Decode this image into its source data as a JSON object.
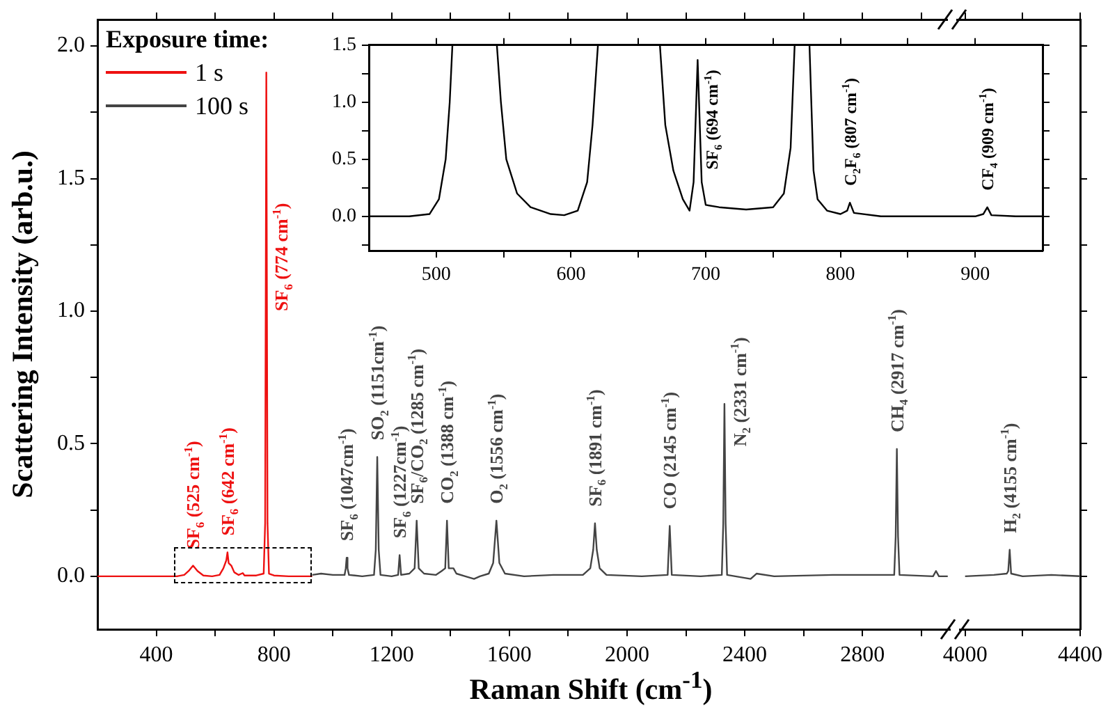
{
  "chart_data": [
    {
      "type": "line",
      "xlabel": "Raman Shift (cm$^{-1}$)",
      "ylabel": "Scattering Intensity (arb.u.)",
      "legend_title": "Exposure time:",
      "legend": "top left",
      "xlim": [
        200,
        3100
      ],
      "xticks": [
        400,
        {
          "value": 600,
          "label": null
        },
        800,
        {
          "value": 1000,
          "label": null
        },
        1200,
        {
          "value": 1400,
          "label": null
        },
        1600,
        {
          "value": 1800,
          "label": null
        },
        2000,
        {
          "value": 2200,
          "label": null
        },
        2400,
        {
          "value": 2600,
          "label": null
        },
        2800,
        {
          "value": 3000,
          "label": null
        }
      ],
      "ylim": [
        -0.2,
        2.1
      ],
      "yticks": [
        {
          "value": 0,
          "label": "0.0"
        },
        {
          "value": 0.25,
          "label": null
        },
        {
          "value": 0.5,
          "label": "0.5"
        },
        {
          "value": 0.75,
          "label": null
        },
        {
          "value": 1,
          "label": "1.0"
        },
        {
          "value": 1.25,
          "label": null
        },
        {
          "value": 1.5,
          "label": "1.5"
        },
        {
          "value": 1.75,
          "label": null
        },
        {
          "value": 2,
          "label": "2.0"
        }
      ],
      "series": [
        {
          "name": "1 s",
          "color": "#ee1111",
          "x": [
            200,
            300,
            400,
            470,
            495,
            510,
            525,
            540,
            560,
            590,
            615,
            628,
            638,
            642,
            646,
            655,
            665,
            680,
            694,
            700,
            740,
            765,
            770,
            774,
            778,
            783,
            800,
            850,
            930
          ],
          "values": [
            0,
            0,
            0,
            0,
            0.005,
            0.02,
            0.04,
            0.02,
            0.003,
            0,
            0.005,
            0.03,
            0.06,
            0.09,
            0.05,
            0.04,
            0.015,
            0.005,
            0.012,
            0.003,
            0.003,
            0.01,
            0.2,
            1.9,
            0.2,
            0.01,
            0.003,
            0,
            0
          ]
        },
        {
          "name": "100 s",
          "color": "#444444",
          "x": [
            930,
            960,
            1000,
            1040,
            1044,
            1047,
            1050,
            1055,
            1100,
            1140,
            1146,
            1151,
            1156,
            1162,
            1200,
            1222,
            1227,
            1232,
            1260,
            1278,
            1285,
            1292,
            1310,
            1350,
            1370,
            1382,
            1388,
            1394,
            1410,
            1420,
            1450,
            1480,
            1500,
            1530,
            1545,
            1556,
            1566,
            1585,
            1650,
            1750,
            1850,
            1875,
            1885,
            1891,
            1897,
            1907,
            1930,
            2050,
            2138,
            2145,
            2152,
            2250,
            2322,
            2327,
            2331,
            2335,
            2340,
            2420,
            2440,
            2500,
            2700,
            2908,
            2913,
            2917,
            2921,
            2926,
            3040,
            3050,
            3060,
            3090
          ],
          "values": [
            0.005,
            0.01,
            0.005,
            0.005,
            0.03,
            0.07,
            0.03,
            0.005,
            0,
            0.005,
            0.1,
            0.45,
            0.1,
            0.005,
            0,
            0.005,
            0.08,
            0.005,
            0.01,
            0.03,
            0.21,
            0.03,
            0.01,
            0.005,
            0.02,
            0.03,
            0.21,
            0.03,
            0.03,
            0.01,
            0,
            -0.01,
            0,
            0.01,
            0.05,
            0.21,
            0.05,
            0.01,
            0,
            0.005,
            0.005,
            0.03,
            0.1,
            0.2,
            0.1,
            0.03,
            0.005,
            0,
            0.005,
            0.19,
            0.005,
            0,
            0.005,
            0.2,
            0.65,
            0.2,
            0.005,
            -0.01,
            0.01,
            0,
            0.005,
            0.005,
            0.15,
            0.48,
            0.15,
            0.005,
            0,
            0.02,
            0,
            0
          ]
        }
      ],
      "annotations": [
        {
          "text": "SF$_{6}$ (525 cm$^{-1}$)",
          "x": 525,
          "y": 0.04
        },
        {
          "text": "SF$_{6}$ (642 cm$^{-1}$)",
          "x": 642,
          "y": 0.09
        },
        {
          "text": "SF$_{6}$ (774 cm$^{-1}$)",
          "x": 774,
          "y": 1.0
        },
        {
          "text": "SF$_{6}$ (1047cm$^{-1}$)",
          "x": 1047,
          "y": 0.07
        },
        {
          "text": "SO$_{2}$ (1151cm$^{-1}$)",
          "x": 1151,
          "y": 0.45
        },
        {
          "text": "SF$_{6}$ (1227cm$^{-1}$)",
          "x": 1227,
          "y": 0.08
        },
        {
          "text": "SF$_{6}$/CO$_{2}$ (1285 cm$^{-1}$)",
          "x": 1285,
          "y": 0.21
        },
        {
          "text": "CO$_{2}$ (1388 cm$^{-1}$)",
          "x": 1388,
          "y": 0.21
        },
        {
          "text": "O$_{2}$ (1556 cm$^{-1}$)",
          "x": 1556,
          "y": 0.21
        },
        {
          "text": "SF$_{6}$ (1891 cm$^{-1}$)",
          "x": 1891,
          "y": 0.2
        },
        {
          "text": "CO (2145 cm$^{-1}$)",
          "x": 2145,
          "y": 0.19
        },
        {
          "text": "N$_{2}$ (2331 cm$^{-1}$)",
          "x": 2331,
          "y": 0.49
        },
        {
          "text": "CH$_{4}$ (2917 cm$^{-1}$)",
          "x": 2917,
          "y": 0.48
        }
      ]
    },
    {
      "type": "line",
      "tick_labels": "x",
      "xlim": [
        3950,
        4400
      ],
      "xticks": [
        4000,
        {
          "value": 4200,
          "label": null
        },
        4400
      ],
      "ylim": [
        -0.2,
        2.1
      ],
      "yticks": [
        {
          "value": 0,
          "label": null
        },
        {
          "value": 0.25,
          "label": null
        },
        {
          "value": 0.5,
          "label": null
        },
        {
          "value": 0.75,
          "label": null
        },
        {
          "value": 1,
          "label": null
        },
        {
          "value": 1.25,
          "label": null
        },
        {
          "value": 1.5,
          "label": null
        },
        {
          "value": 1.75,
          "label": null
        },
        {
          "value": 2,
          "label": null
        }
      ],
      "series": [
        {
          "color": "#444444",
          "x": [
            4000,
            4100,
            4145,
            4150,
            4155,
            4160,
            4200,
            4300,
            4400
          ],
          "values": [
            0,
            0.005,
            0.01,
            0.02,
            0.1,
            0.01,
            0,
            0.005,
            0
          ]
        }
      ],
      "annotations": [
        {
          "text": "H$_{2}$ (4155 cm$^{-1}$)",
          "x": 4155,
          "y": 0.1
        }
      ]
    },
    {
      "type": "line",
      "xlim": [
        450,
        950
      ],
      "xticks": [
        500,
        {
          "value": 550,
          "label": null
        },
        600,
        {
          "value": 650,
          "label": null
        },
        700,
        {
          "value": 750,
          "label": null
        },
        800,
        {
          "value": 850,
          "label": null
        },
        900
      ],
      "ylim": [
        -0.3,
        1.5
      ],
      "yticks": [
        {
          "value": -0.25,
          "label": null
        },
        {
          "value": 0,
          "label": "0.0"
        },
        {
          "value": 0.25,
          "label": null
        },
        {
          "value": 0.5,
          "label": "0.5"
        },
        {
          "value": 0.75,
          "label": null
        },
        {
          "value": 1,
          "label": "1.0"
        },
        {
          "value": 1.25,
          "label": null
        },
        {
          "value": 1.5,
          "label": "1.5"
        }
      ],
      "series": [
        {
          "color": "#000000",
          "x": [
            450,
            480,
            495,
            502,
            507,
            510,
            512,
            528,
            545,
            548,
            552,
            560,
            570,
            585,
            595,
            605,
            612,
            616,
            620,
            643,
            666,
            670,
            676,
            683,
            688,
            691,
            694,
            697,
            700,
            710,
            730,
            750,
            758,
            763,
            766,
            772,
            777,
            780,
            783,
            790,
            800,
            805,
            807,
            810,
            830,
            900,
            906,
            909,
            912,
            930,
            950
          ],
          "values": [
            0,
            0,
            0.02,
            0.15,
            0.5,
            1.0,
            1.5,
            null,
            1.5,
            1.0,
            0.5,
            0.2,
            0.08,
            0.02,
            0.01,
            0.05,
            0.3,
            0.8,
            1.5,
            null,
            1.5,
            0.8,
            0.4,
            0.15,
            0.05,
            0.3,
            1.37,
            0.3,
            0.1,
            0.08,
            0.06,
            0.08,
            0.2,
            0.6,
            1.5,
            null,
            1.5,
            0.4,
            0.15,
            0.05,
            0.02,
            0.05,
            0.12,
            0.03,
            0,
            0,
            0.02,
            0.08,
            0.01,
            0,
            0
          ]
        }
      ],
      "annotations": [
        {
          "text": "SF$_{6}$ (694 cm$^{-1}$)",
          "x": 694,
          "y": 0.41
        },
        {
          "text": "C$_{2}$F$_{6}$ (807 cm$^{-1}$)",
          "x": 807,
          "y": 0.12
        },
        {
          "text": "CF$_{4}$ (909 cm$^{-1}$)",
          "x": 909,
          "y": 0.08
        }
      ]
    }
  ]
}
